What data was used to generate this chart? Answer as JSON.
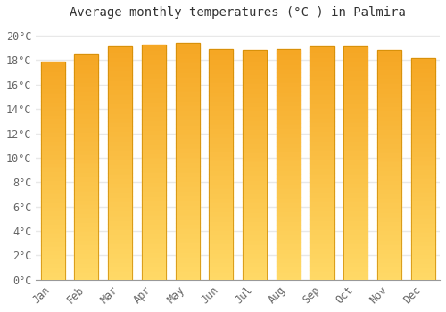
{
  "months": [
    "Jan",
    "Feb",
    "Mar",
    "Apr",
    "May",
    "Jun",
    "Jul",
    "Aug",
    "Sep",
    "Oct",
    "Nov",
    "Dec"
  ],
  "values": [
    17.9,
    18.5,
    19.1,
    19.3,
    19.4,
    18.9,
    18.8,
    18.9,
    19.1,
    19.1,
    18.8,
    18.2
  ],
  "bar_color_top": "#F5A623",
  "bar_color_bottom": "#FFD966",
  "title": "Average monthly temperatures (°C ) in Palmira",
  "ylabel_ticks": [
    "0°C",
    "2°C",
    "4°C",
    "6°C",
    "8°C",
    "10°C",
    "12°C",
    "14°C",
    "16°C",
    "18°C",
    "20°C"
  ],
  "ytick_vals": [
    0,
    2,
    4,
    6,
    8,
    10,
    12,
    14,
    16,
    18,
    20
  ],
  "ylim": [
    0,
    20.8
  ],
  "background_color": "#FFFFFF",
  "grid_color": "#E8E8E8",
  "title_fontsize": 10,
  "tick_fontsize": 8.5,
  "bar_edge_color": "#CC8800",
  "bar_width": 0.72
}
